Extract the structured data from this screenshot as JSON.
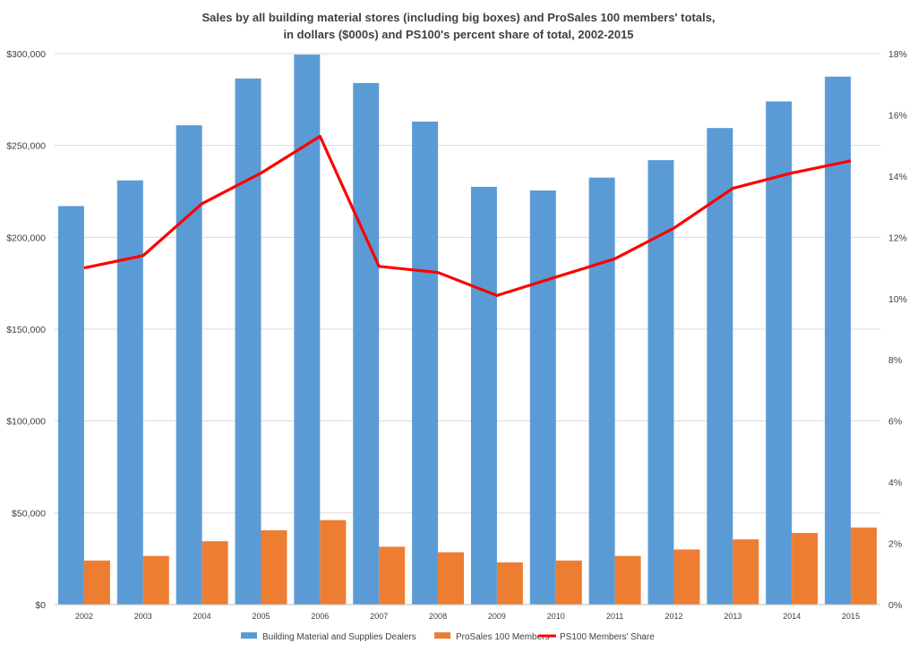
{
  "chart_data": {
    "type": "bar",
    "title_line1": "Sales by all building material stores (including big boxes) and ProSales 100 members' totals,",
    "title_line2": "in dollars ($000s) and PS100's percent share of total, 2002-2015",
    "categories": [
      "2002",
      "2003",
      "2004",
      "2005",
      "2006",
      "2007",
      "2008",
      "2009",
      "2010",
      "2011",
      "2012",
      "2013",
      "2014",
      "2015"
    ],
    "series": [
      {
        "name": "Building Material and Supplies Dealers",
        "type": "bar",
        "axis": "left",
        "color": "#5B9BD5",
        "values": [
          217000,
          231000,
          261000,
          286500,
          299500,
          284000,
          263000,
          227500,
          225500,
          232500,
          242000,
          259500,
          274000,
          287500
        ]
      },
      {
        "name": "ProSales 100 Members",
        "type": "bar",
        "axis": "left",
        "color": "#ED7D31",
        "values": [
          24000,
          26500,
          34500,
          40500,
          46000,
          31500,
          28500,
          23000,
          24000,
          26500,
          30000,
          35500,
          39000,
          42000
        ]
      },
      {
        "name": "PS100 Members' Share",
        "type": "line",
        "axis": "right",
        "color": "#FF0000",
        "values": [
          11.0,
          11.4,
          13.1,
          14.1,
          15.3,
          11.05,
          10.85,
          10.1,
          10.7,
          11.3,
          12.3,
          13.6,
          14.1,
          14.5
        ]
      }
    ],
    "y_left": {
      "min": 0,
      "max": 300000,
      "ticks": [
        "$0",
        "$50,000",
        "$100,000",
        "$150,000",
        "$200,000",
        "$250,000",
        "$300,000"
      ]
    },
    "y_right": {
      "min": 0,
      "max": 18,
      "ticks": [
        "0%",
        "2%",
        "4%",
        "6%",
        "8%",
        "10%",
        "12%",
        "14%",
        "16%",
        "18%"
      ]
    },
    "grid": true,
    "legend_position": "bottom"
  }
}
